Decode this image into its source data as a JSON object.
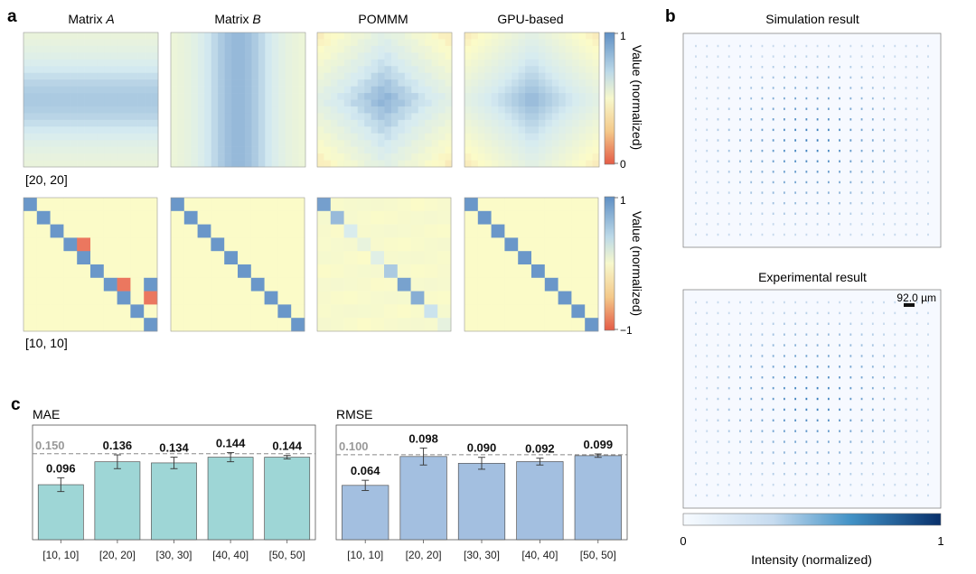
{
  "panel_a": {
    "label": "a",
    "columns": [
      {
        "name": "Matrix ",
        "italic": "A"
      },
      {
        "name": "Matrix ",
        "italic": "B"
      },
      {
        "name": "POMMM",
        "italic": ""
      },
      {
        "name": "GPU-based",
        "italic": ""
      }
    ],
    "row_labels": [
      "[20, 20]",
      "[10, 10]"
    ],
    "colorbar_top": {
      "label": "Value (normalized)",
      "max": "1",
      "min": "0"
    },
    "colorbar_bottom": {
      "label": "Value (normalized)",
      "max": "1",
      "min": "−1"
    },
    "colors": {
      "high": "#6e9bcb",
      "mid": "#fbfbc8",
      "low": "#e8604c"
    }
  },
  "panel_b": {
    "label": "b",
    "sim_title": "Simulation result",
    "exp_title": "Experimental result",
    "scale_bar": "92.0 µm",
    "colorbar": {
      "min": "0",
      "max": "1",
      "label": "Intensity (normalized)"
    },
    "colors": {
      "low": "#f7fbff",
      "high": "#08306b"
    }
  },
  "panel_c": {
    "label": "c"
  },
  "chart_data": [
    {
      "type": "bar",
      "title": "MAE",
      "categories": [
        "[10, 10]",
        "[20, 20]",
        "[30, 30]",
        "[40, 40]",
        "[50, 50]"
      ],
      "values": [
        0.096,
        0.136,
        0.134,
        0.144,
        0.144
      ],
      "value_labels": [
        "0.096",
        "0.136",
        "0.134",
        "0.144",
        "0.144"
      ],
      "errors": [
        0.012,
        0.012,
        0.01,
        0.008,
        0.003
      ],
      "reference_line": 0.15,
      "reference_label": "0.150",
      "ylim": [
        0,
        0.2
      ],
      "color": "#9ed6d6"
    },
    {
      "type": "bar",
      "title": "RMSE",
      "categories": [
        "[10, 10]",
        "[20, 20]",
        "[30, 30]",
        "[40, 40]",
        "[50, 50]"
      ],
      "values": [
        0.064,
        0.098,
        0.09,
        0.092,
        0.099
      ],
      "value_labels": [
        "0.064",
        "0.098",
        "0.090",
        "0.092",
        "0.099"
      ],
      "errors": [
        0.006,
        0.01,
        0.007,
        0.004,
        0.002
      ],
      "reference_line": 0.1,
      "reference_label": "0.100",
      "ylim": [
        0,
        0.135
      ],
      "color": "#a3bfe0"
    }
  ]
}
